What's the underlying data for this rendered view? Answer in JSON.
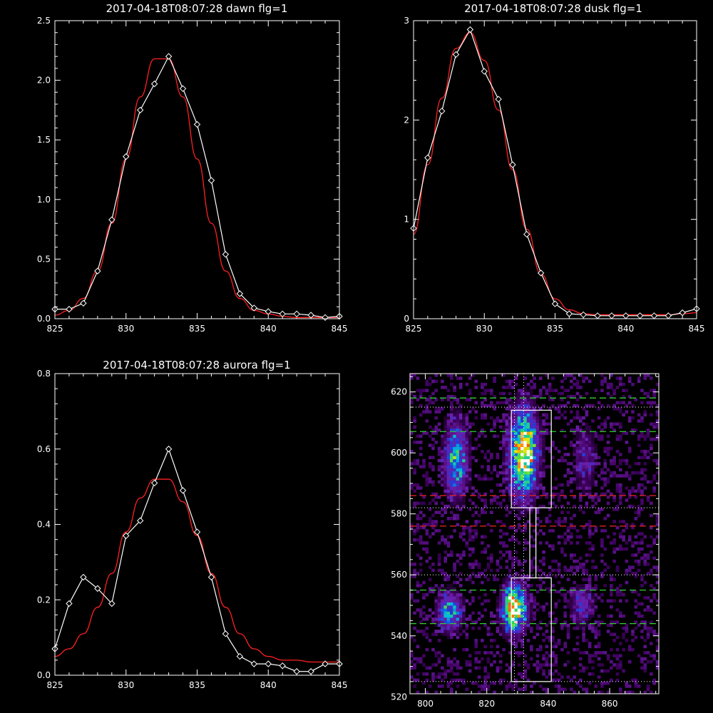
{
  "colors": {
    "background": "#000000",
    "axes": "#ffffff",
    "data_line": "#ffffff",
    "fit_line": "#ff2020",
    "green_dashed": "#33cc33",
    "red_dashed": "#dd2222",
    "dotted": "#ffffff"
  },
  "chart_data": [
    {
      "type": "line",
      "title": "2017-04-18T08:07:28 dawn flg=1",
      "xlim": [
        825,
        845
      ],
      "ylim": [
        0,
        2.5
      ],
      "xticks": [
        825,
        830,
        835,
        840,
        845
      ],
      "yticks": [
        0.0,
        0.5,
        1.0,
        1.5,
        2.0,
        2.5
      ],
      "ytick_labels": [
        "0.0",
        "0.5",
        "1.0",
        "1.5",
        "2.0",
        "2.5"
      ],
      "series": [
        {
          "style": "white line with diamond markers",
          "x": [
            825,
            826,
            827,
            828,
            829,
            830,
            831,
            832,
            833,
            834,
            835,
            836,
            837,
            838,
            839,
            840,
            841,
            842,
            843,
            844,
            845
          ],
          "y": [
            0.08,
            0.08,
            0.13,
            0.4,
            0.83,
            1.36,
            1.75,
            1.97,
            2.2,
            1.93,
            1.63,
            1.16,
            0.54,
            0.21,
            0.09,
            0.06,
            0.04,
            0.04,
            0.03,
            0.01,
            0.02
          ]
        },
        {
          "style": "red fit curve",
          "x": [
            825,
            826,
            827,
            828,
            829,
            830,
            831,
            832,
            833,
            834,
            835,
            836,
            837,
            838,
            839,
            840,
            841,
            842,
            843,
            844,
            845
          ],
          "y": [
            0.03,
            0.07,
            0.17,
            0.4,
            0.8,
            1.34,
            1.86,
            2.18,
            2.18,
            1.86,
            1.34,
            0.8,
            0.4,
            0.17,
            0.07,
            0.04,
            0.02,
            0.01,
            0.01,
            0.01,
            0.01
          ]
        }
      ]
    },
    {
      "type": "line",
      "title": "2017-04-18T08:07:28 dusk flg=1",
      "xlim": [
        825,
        845
      ],
      "ylim": [
        0,
        3
      ],
      "xticks": [
        825,
        830,
        835,
        840,
        845
      ],
      "yticks": [
        0,
        1,
        2,
        3
      ],
      "ytick_labels": [
        "0",
        "1",
        "2",
        "3"
      ],
      "series": [
        {
          "style": "white line with diamond markers",
          "x": [
            825,
            826,
            827,
            828,
            829,
            830,
            831,
            832,
            833,
            834,
            835,
            836,
            837,
            838,
            839,
            840,
            841,
            842,
            843,
            844,
            845
          ],
          "y": [
            0.91,
            1.62,
            2.09,
            2.66,
            2.91,
            2.49,
            2.21,
            1.55,
            0.85,
            0.46,
            0.15,
            0.05,
            0.04,
            0.03,
            0.03,
            0.03,
            0.03,
            0.03,
            0.03,
            0.06,
            0.1
          ]
        },
        {
          "style": "red fit curve",
          "x": [
            825,
            826,
            827,
            828,
            829,
            830,
            831,
            832,
            833,
            834,
            835,
            836,
            837,
            838,
            839,
            840,
            841,
            842,
            843,
            844,
            845
          ],
          "y": [
            0.85,
            1.55,
            2.22,
            2.72,
            2.88,
            2.6,
            2.1,
            1.5,
            0.9,
            0.45,
            0.2,
            0.09,
            0.05,
            0.04,
            0.04,
            0.04,
            0.04,
            0.04,
            0.04,
            0.05,
            0.06
          ]
        }
      ]
    },
    {
      "type": "line",
      "title": "2017-04-18T08:07:28 aurora flg=1",
      "xlim": [
        825,
        845
      ],
      "ylim": [
        0,
        0.8
      ],
      "xticks": [
        825,
        830,
        835,
        840,
        845
      ],
      "yticks": [
        0.0,
        0.2,
        0.4,
        0.6,
        0.8
      ],
      "ytick_labels": [
        "0.0",
        "0.2",
        "0.4",
        "0.6",
        "0.8"
      ],
      "series": [
        {
          "style": "white line with diamond markers",
          "x": [
            825,
            826,
            827,
            828,
            829,
            830,
            831,
            832,
            833,
            834,
            835,
            836,
            837,
            838,
            839,
            840,
            841,
            842,
            843,
            844,
            845
          ],
          "y": [
            0.07,
            0.19,
            0.26,
            0.23,
            0.19,
            0.37,
            0.41,
            0.51,
            0.6,
            0.49,
            0.38,
            0.26,
            0.11,
            0.05,
            0.03,
            0.03,
            0.025,
            0.01,
            0.01,
            0.03,
            0.03
          ]
        },
        {
          "style": "red fit curve",
          "x": [
            825,
            826,
            827,
            828,
            829,
            830,
            831,
            832,
            833,
            834,
            835,
            836,
            837,
            838,
            839,
            840,
            841,
            842,
            843,
            844,
            845
          ],
          "y": [
            0.05,
            0.07,
            0.11,
            0.18,
            0.27,
            0.38,
            0.47,
            0.52,
            0.52,
            0.46,
            0.37,
            0.27,
            0.18,
            0.11,
            0.07,
            0.05,
            0.04,
            0.04,
            0.035,
            0.035,
            0.035
          ]
        }
      ]
    },
    {
      "type": "heatmap",
      "title": "",
      "xlim": [
        795,
        876
      ],
      "ylim": [
        521,
        626
      ],
      "xticks": [
        800,
        820,
        840,
        860
      ],
      "yticks": [
        520,
        540,
        560,
        580,
        600,
        620
      ],
      "blobs": [
        {
          "x": 810,
          "y": 598,
          "sx": 2.5,
          "sy": 8,
          "peak": 0.55
        },
        {
          "x": 832,
          "y": 600,
          "sx": 3.0,
          "sy": 9,
          "peak": 0.95
        },
        {
          "x": 852,
          "y": 598,
          "sx": 2.5,
          "sy": 7,
          "peak": 0.22
        },
        {
          "x": 808,
          "y": 548,
          "sx": 2.5,
          "sy": 4,
          "peak": 0.55
        },
        {
          "x": 829,
          "y": 549,
          "sx": 2.5,
          "sy": 5,
          "peak": 1.0
        },
        {
          "x": 851,
          "y": 550,
          "sx": 2.5,
          "sy": 4,
          "peak": 0.3
        }
      ],
      "boxes": [
        {
          "x0": 828,
          "x1": 841,
          "y0": 582,
          "y1": 614
        },
        {
          "x0": 834,
          "x1": 836,
          "y0": 559,
          "y1": 582
        },
        {
          "x0": 828,
          "x1": 841,
          "y0": 525,
          "y1": 559
        }
      ],
      "green_dashed_y": [
        618,
        607,
        555,
        544
      ],
      "red_dashed_y": [
        586,
        576
      ],
      "dotted_y": [
        615,
        582,
        560,
        525
      ],
      "dotted_x": [
        829,
        832
      ]
    }
  ]
}
